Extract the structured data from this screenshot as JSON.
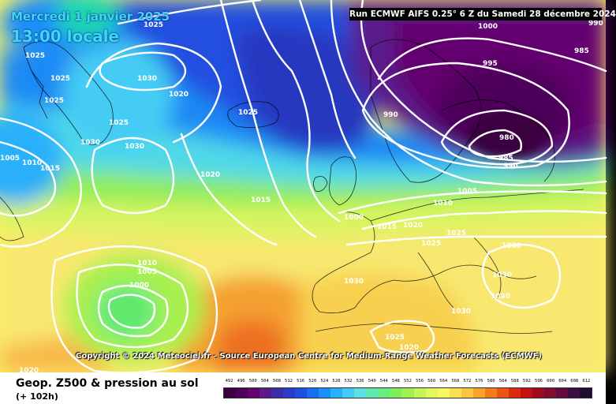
{
  "header": {
    "date": "Mercredi 1 janvier 2025",
    "hour": "13:00 locale",
    "run": "Run ECMWF AIFS 0.25° 6 Z du Samedi 28 décembre 2024"
  },
  "copyright": "Copyright © 2024 Meteociel.fr - Source European Centre for Medium-Range Weather Forecasts (ECMWF)",
  "footer": {
    "title": "Geop. Z500 & pression au sol",
    "subtitle": "(+ 102h)"
  },
  "scale": {
    "values": [
      "492",
      "496",
      "500",
      "504",
      "508",
      "512",
      "516",
      "520",
      "524",
      "528",
      "532",
      "536",
      "540",
      "544",
      "548",
      "552",
      "556",
      "560",
      "564",
      "568",
      "572",
      "576",
      "580",
      "584",
      "588",
      "592",
      "596",
      "600",
      "604",
      "608",
      "612"
    ],
    "colors": [
      "#3a0040",
      "#4e005a",
      "#640070",
      "#5a1a8c",
      "#3c2ca8",
      "#2a3cc8",
      "#1e50e0",
      "#1a6ef0",
      "#1c8ef8",
      "#28b0fa",
      "#44ccf4",
      "#5ee0e0",
      "#60e8b0",
      "#68ec80",
      "#80ee5c",
      "#a0f050",
      "#c4f45a",
      "#e2f85e",
      "#f8f860",
      "#f8e050",
      "#f8c83c",
      "#f8a42c",
      "#f47a1c",
      "#ec5414",
      "#dc2c10",
      "#c41010",
      "#a00c1c",
      "#800c30",
      "#600c40",
      "#400c44",
      "#200c30"
    ]
  },
  "isobar_labels": [
    {
      "text": "1025"
    },
    {
      "text": "1025"
    },
    {
      "text": "1025"
    },
    {
      "text": "1025"
    },
    {
      "text": "1025"
    },
    {
      "text": "1030"
    },
    {
      "text": "1030"
    },
    {
      "text": "1030"
    },
    {
      "text": "1020"
    },
    {
      "text": "1025"
    },
    {
      "text": "1005"
    },
    {
      "text": "1010"
    },
    {
      "text": "1015"
    },
    {
      "text": "1020"
    },
    {
      "text": "1015"
    },
    {
      "text": "1000"
    },
    {
      "text": "995"
    },
    {
      "text": "985"
    },
    {
      "text": "990"
    },
    {
      "text": "980"
    },
    {
      "text": "985"
    },
    {
      "text": "990"
    },
    {
      "text": "1005"
    },
    {
      "text": "1010"
    },
    {
      "text": "1000"
    },
    {
      "text": "1015"
    },
    {
      "text": "1020"
    },
    {
      "text": "1025"
    },
    {
      "text": "1025"
    },
    {
      "text": "1030"
    },
    {
      "text": "1010"
    },
    {
      "text": "1005"
    },
    {
      "text": "1000"
    },
    {
      "text": "1030"
    },
    {
      "text": "1030"
    },
    {
      "text": "1030"
    },
    {
      "text": "1030"
    },
    {
      "text": "1025"
    },
    {
      "text": "1020"
    },
    {
      "text": "1020"
    },
    {
      "text": "990"
    }
  ]
}
